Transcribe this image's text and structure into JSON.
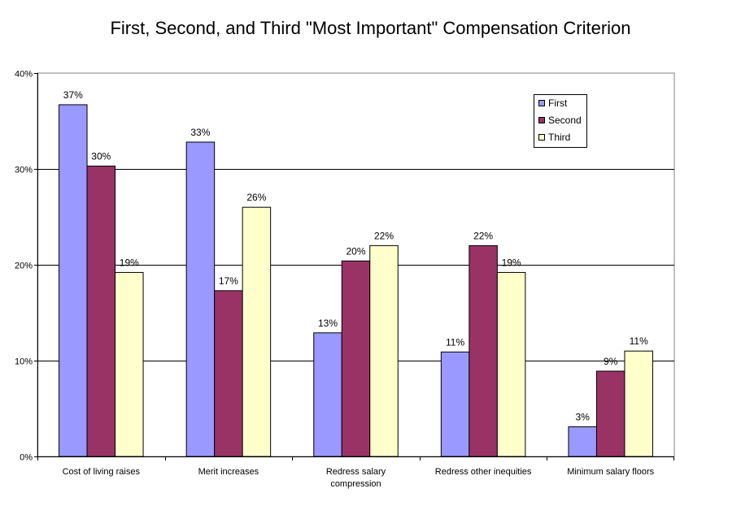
{
  "chart_data": {
    "type": "bar",
    "title": "First, Second, and Third \"Most Important\" Compensation Criterion",
    "xlabel": "",
    "ylabel": "",
    "ylim": [
      0,
      40
    ],
    "yticks": [
      "0%",
      "10%",
      "20%",
      "30%",
      "40%"
    ],
    "ytick_values": [
      0,
      10,
      20,
      30,
      40
    ],
    "categories": [
      "Cost of living raises",
      "Merit increases",
      "Redress salary compression",
      "Redress other inequities",
      "Minimum salary floors"
    ],
    "series": [
      {
        "name": "First",
        "color": "#9999ff",
        "values": [
          36.7,
          32.8,
          12.9,
          10.9,
          3.1
        ],
        "labels": [
          "37%",
          "33%",
          "13%",
          "11%",
          "3%"
        ]
      },
      {
        "name": "Second",
        "color": "#993366",
        "values": [
          30.3,
          17.3,
          20.4,
          22.0,
          8.9
        ],
        "labels": [
          "30%",
          "17%",
          "20%",
          "22%",
          "9%"
        ]
      },
      {
        "name": "Third",
        "color": "#ffffcc",
        "values": [
          19.2,
          26.0,
          22.0,
          19.2,
          11.0
        ],
        "labels": [
          "19%",
          "26%",
          "22%",
          "19%",
          "11%"
        ]
      }
    ],
    "grid": true,
    "legend_position": "top-right",
    "colors": {
      "axis": "#000000",
      "grid": "#000000",
      "bar_border": "#000000"
    }
  }
}
